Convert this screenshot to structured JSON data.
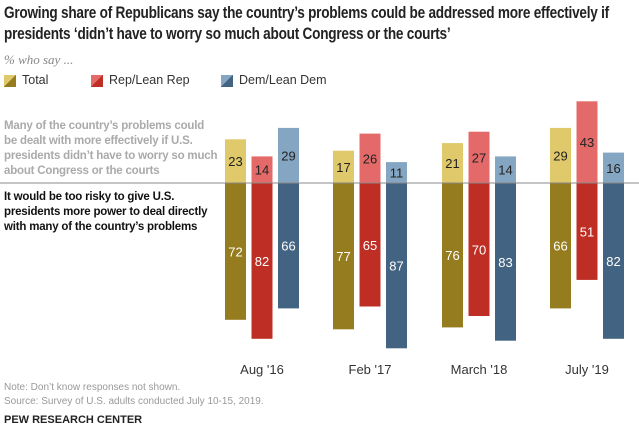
{
  "title": "Growing share of Republicans say the country’s problems could be addressed more effectively if presidents ‘didn’t have to worry so much about Congress or the courts’",
  "subtitle": "% who say ...",
  "top_statement": "Many of the country’s problems could be dealt with more effectively if U.S. presidents didn’t have to worry so much about Congress or the courts",
  "bottom_statement": "It would be too risky to give U.S. presidents more power to deal directly with many of the country’s problems",
  "note": "Note: Don’t know responses not shown.",
  "source": "Source: Survey of U.S. adults conducted July 10-15, 2019.",
  "brand": "PEW RESEARCH CENTER",
  "chart_data": {
    "type": "bar",
    "categories": [
      "Aug '16",
      "Feb '17",
      "March '18",
      "July '19"
    ],
    "series": [
      {
        "name": "Total",
        "top": [
          23,
          17,
          21,
          29
        ],
        "bottom": [
          72,
          77,
          76,
          66
        ],
        "light": "#e0c96a",
        "dark": "#957c1f"
      },
      {
        "name": "Rep/Lean Rep",
        "top": [
          14,
          26,
          27,
          43
        ],
        "bottom": [
          82,
          65,
          70,
          51
        ],
        "light": "#e46a6a",
        "dark": "#bf2e25"
      },
      {
        "name": "Dem/Lean Dem",
        "top": [
          29,
          11,
          14,
          16
        ],
        "bottom": [
          66,
          87,
          83,
          82
        ],
        "light": "#84a6c2",
        "dark": "#436382"
      }
    ],
    "legend": "top"
  }
}
